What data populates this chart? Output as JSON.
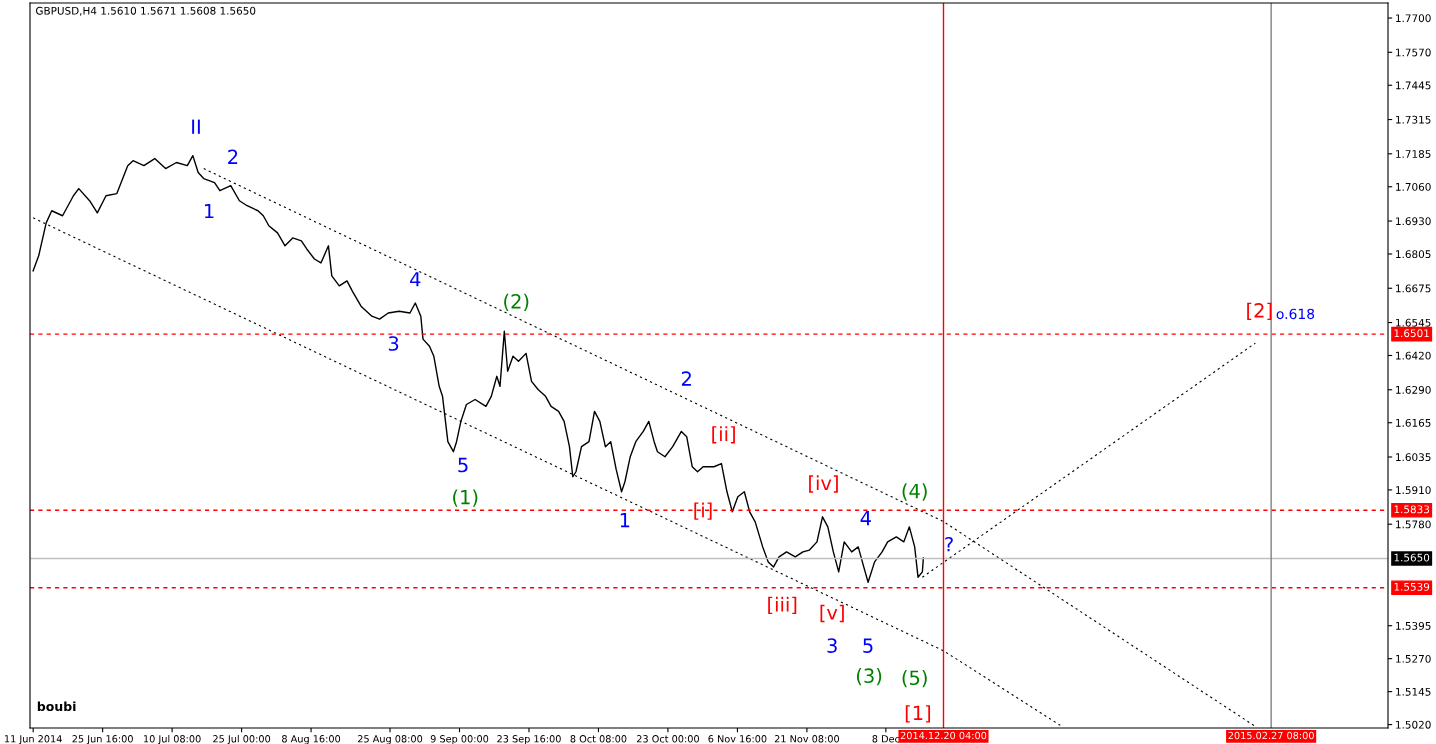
{
  "chart_data": {
    "type": "line",
    "title": "GBPUSD,H4 1.5610 1.5671 1.5608 1.5650",
    "xlim": [
      "2014-06-10T08:00",
      "2015-03-24T00:00"
    ],
    "ylim": [
      1.5007,
      1.7757
    ],
    "xticks": [
      {
        "value": "2014-06-11T00:00",
        "label": "11 Jun 2014"
      },
      {
        "value": "2014-06-25T16:00",
        "label": "25 Jun 16:00"
      },
      {
        "value": "2014-07-10T08:00",
        "label": "10 Jul 08:00"
      },
      {
        "value": "2014-07-25T00:00",
        "label": "25 Jul 00:00"
      },
      {
        "value": "2014-08-08T16:00",
        "label": "8 Aug 16:00"
      },
      {
        "value": "2014-08-25T08:00",
        "label": "25 Aug 08:00"
      },
      {
        "value": "2014-09-09T00:00",
        "label": "9 Sep 00:00"
      },
      {
        "value": "2014-09-23T16:00",
        "label": "23 Sep 16:00"
      },
      {
        "value": "2014-10-08T08:00",
        "label": "8 Oct 08:00"
      },
      {
        "value": "2014-10-23T00:00",
        "label": "23 Oct 00:00"
      },
      {
        "value": "2014-11-06T16:00",
        "label": "6 Nov 16:00"
      },
      {
        "value": "2014-11-21T08:00",
        "label": "21 Nov 08:00"
      },
      {
        "value": "2014-12-08T00:00",
        "label": "8 Dec"
      }
    ],
    "yticks": [
      {
        "value": 1.77,
        "label": "1.7700"
      },
      {
        "value": 1.757,
        "label": "1.7570"
      },
      1.7445,
      1.7315,
      1.7185,
      {
        "value": 1.706,
        "label": "1.7060"
      },
      {
        "value": 1.693,
        "label": "1.6930"
      },
      1.6805,
      1.6675,
      1.6545,
      {
        "value": 1.642,
        "label": "1.6420"
      },
      {
        "value": 1.629,
        "label": "1.6290"
      },
      1.6165,
      1.6035,
      {
        "value": 1.591,
        "label": "1.5910"
      },
      {
        "value": 1.578,
        "label": "1.5780"
      },
      1.5395,
      {
        "value": 1.527,
        "label": "1.5270"
      },
      1.5145,
      {
        "value": 1.502,
        "label": "1.5020"
      }
    ],
    "grid": false,
    "marker": "none",
    "series": [
      {
        "color": "#000000",
        "line_style": "solid",
        "x": [
          "2014-06-11T00:00",
          "2014-06-12T04:00",
          "2014-06-13T18:00",
          "2014-06-14T22:00",
          "2014-06-17T05:00",
          "2014-06-19T12:00",
          "2014-06-20T15:00",
          "2014-06-22T22:00",
          "2014-06-24T13:00",
          "2014-06-26T09:00",
          "2014-06-28T16:00",
          "2014-06-30T23:00",
          "2014-07-02T02:00",
          "2014-07-04T09:00",
          "2014-07-06T16:00",
          "2014-07-08T23:00",
          "2014-07-11T06:00",
          "2014-07-13T13:00",
          "2014-07-14T17:00",
          "2014-07-15T20:00",
          "2014-07-17T00:00",
          "2014-07-19T07:00",
          "2014-07-20T10:00",
          "2014-07-22T17:00",
          "2014-07-24T13:00",
          "2014-07-26T04:00",
          "2014-07-28T11:00",
          "2014-07-29T14:00",
          "2014-07-30T18:00",
          "2014-08-01T14:00",
          "2014-08-03T04:00",
          "2014-08-04T19:00",
          "2014-08-06T15:00",
          "2014-08-07T18:00",
          "2014-08-09T09:00",
          "2014-08-10T18:00",
          "2014-08-12T08:00",
          "2014-08-13T01:00",
          "2014-08-14T15:00",
          "2014-08-16T06:00",
          "2014-08-17T09:00",
          "2014-08-19T05:00",
          "2014-08-21T12:00",
          "2014-08-23T03:00",
          "2014-08-24T23:00",
          "2014-08-27T06:00",
          "2014-08-29T13:00",
          "2014-08-30T16:00",
          "2014-08-31T20:00",
          "2014-09-01T07:00",
          "2014-09-02T16:00",
          "2014-09-03T14:00",
          "2014-09-04T17:00",
          "2014-09-05T10:00",
          "2014-09-06T13:00",
          "2014-09-07T17:00",
          "2014-09-08T09:00",
          "2014-09-09T07:00",
          "2014-09-10T11:00",
          "2014-09-12T07:00",
          "2014-09-14T14:00",
          "2014-09-15T17:00",
          "2014-09-16T21:00",
          "2014-09-17T13:00",
          "2014-09-18T11:00",
          "2014-09-19T04:00",
          "2014-09-20T07:00",
          "2014-09-21T11:00",
          "2014-09-23T01:00",
          "2014-09-24T05:00",
          "2014-09-25T14:00",
          "2014-09-27T04:00",
          "2014-09-28T08:00",
          "2014-09-29T22:00",
          "2014-10-01T02:00",
          "2014-10-02T05:00",
          "2014-10-02T22:00",
          "2014-10-03T14:00",
          "2014-10-04T18:00",
          "2014-10-06T08:00",
          "2014-10-07T12:00",
          "2014-10-08T15:00",
          "2014-10-09T19:00",
          "2014-10-10T22:00",
          "2014-10-12T02:00",
          "2014-10-13T05:00",
          "2014-10-13T22:00",
          "2014-10-15T01:00",
          "2014-10-16T05:00",
          "2014-10-17T19:00",
          "2014-10-18T23:00",
          "2014-10-20T02:00",
          "2014-10-20T19:00",
          "2014-10-22T09:00",
          "2014-10-24T00:00",
          "2014-10-25T20:00",
          "2014-10-26T23:00",
          "2014-10-28T03:00",
          "2014-10-29T06:00",
          "2014-10-30T10:00",
          "2014-11-01T17:00",
          "2014-11-03T07:00",
          "2014-11-04T11:00",
          "2014-11-05T14:00",
          "2014-11-06T18:00",
          "2014-11-08T03:00",
          "2014-11-09T06:00",
          "2014-11-10T10:00",
          "2014-11-12T00:00",
          "2014-11-13T04:00",
          "2014-11-14T07:00",
          "2014-11-15T11:00",
          "2014-11-17T01:00",
          "2014-11-18T21:00",
          "2014-11-20T12:00",
          "2014-11-21T21:00",
          "2014-11-23T11:00",
          "2014-11-24T15:00",
          "2014-11-25T18:00",
          "2014-11-26T22:00",
          "2014-11-28T01:00",
          "2014-11-29T05:00",
          "2014-11-30T19:00",
          "2014-12-02T04:00",
          "2014-12-03T08:00",
          "2014-12-04T06:00",
          "2014-12-05T15:00",
          "2014-12-07T05:00",
          "2014-12-08T09:00",
          "2014-12-10T05:00",
          "2014-12-11T19:00",
          "2014-12-12T23:00",
          "2014-12-14T02:00",
          "2014-12-14T19:00",
          "2014-12-15T17:00",
          "2014-12-15T22:00"
        ],
        "values": [
          1.6741,
          1.6798,
          1.6923,
          1.6969,
          1.695,
          1.7026,
          1.7053,
          1.7007,
          1.6961,
          1.7026,
          1.7034,
          1.714,
          1.7159,
          1.714,
          1.7167,
          1.7129,
          1.7152,
          1.714,
          1.7178,
          1.7114,
          1.7091,
          1.7076,
          1.7045,
          1.7064,
          1.7007,
          1.6988,
          1.6969,
          1.695,
          1.6912,
          1.6885,
          1.6836,
          1.6866,
          1.6855,
          1.6824,
          1.6786,
          1.6771,
          1.6836,
          1.6722,
          1.6684,
          1.6703,
          1.6664,
          1.6607,
          1.6569,
          1.6558,
          1.6581,
          1.6588,
          1.6581,
          1.6619,
          1.6569,
          1.6482,
          1.6455,
          1.6417,
          1.6303,
          1.6265,
          1.6093,
          1.6055,
          1.6093,
          1.617,
          1.6234,
          1.6253,
          1.6227,
          1.6265,
          1.6341,
          1.6303,
          1.6512,
          1.636,
          1.6417,
          1.6398,
          1.6428,
          1.6322,
          1.6291,
          1.6265,
          1.6227,
          1.6208,
          1.617,
          1.6074,
          1.596,
          1.5979,
          1.6074,
          1.6093,
          1.6208,
          1.617,
          1.6074,
          1.6093,
          1.5987,
          1.5903,
          1.5941,
          1.6036,
          1.6093,
          1.6132,
          1.617,
          1.6093,
          1.6055,
          1.6036,
          1.6074,
          1.6132,
          1.6112,
          1.5998,
          1.5979,
          1.5998,
          1.5998,
          1.601,
          1.5903,
          1.5827,
          1.5884,
          1.5903,
          1.5827,
          1.5789,
          1.5694,
          1.5637,
          1.5618,
          1.5656,
          1.5675,
          1.5656,
          1.5675,
          1.5682,
          1.5713,
          1.5808,
          1.577,
          1.5675,
          1.5599,
          1.5713,
          1.5675,
          1.5694,
          1.5618,
          1.556,
          1.5637,
          1.5675,
          1.5713,
          1.5732,
          1.5713,
          1.577,
          1.5694,
          1.5579,
          1.5599,
          1.5652
        ]
      },
      {
        "type": "line",
        "color": "#000000",
        "line_style": "dotted",
        "x": [
          "2014-07-17T00:00",
          "2014-12-20T04:00",
          "2015-02-23T20:00"
        ],
        "values": [
          1.7129,
          1.579,
          1.5015
        ]
      },
      {
        "type": "line",
        "color": "#000000",
        "line_style": "dotted",
        "x": [
          "2014-06-11T00:00",
          "2014-12-20T04:00",
          "2015-01-14T00:00"
        ],
        "values": [
          1.6942,
          1.53,
          1.5015
        ]
      },
      {
        "type": "line",
        "color": "#000000",
        "line_style": "dotted",
        "x": [
          "2014-12-15T17:00",
          "2015-02-24T00:00"
        ],
        "values": [
          1.5579,
          1.6467
        ]
      }
    ],
    "ref_lines": [
      {
        "axis": "y",
        "value": 1.6501,
        "label": "1.6501",
        "color": "#ff0000",
        "line_style": "dashed"
      },
      {
        "axis": "y",
        "value": 1.5833,
        "label": "1.5833",
        "color": "#ff0000",
        "line_style": "dashed"
      },
      {
        "axis": "y",
        "value": 1.565,
        "label": "1.5650",
        "color": "#c0c0c0",
        "line_style": "solid"
      },
      {
        "axis": "y",
        "value": 1.5539,
        "label": "1.5539",
        "color": "#ff0000",
        "line_style": "dashed"
      },
      {
        "axis": "x",
        "value": "2014-12-20T04:00",
        "label": "2014.12.20 04:00",
        "color": "#ff0000",
        "line_style": "solid"
      },
      {
        "axis": "x",
        "value": "2015-02-27T08:00",
        "label": "2015.02.27 08:00",
        "color": "#808080",
        "line_style": "solid"
      }
    ],
    "annotations": [
      "II",
      "2",
      "1",
      "4",
      "3",
      "5",
      "(1)",
      "(2)",
      "2",
      "1",
      "[ii]",
      "[i]",
      "[iv]",
      "(4)",
      "4",
      "?",
      "[iii]",
      "[v]",
      "3",
      "5",
      "(3)",
      "(5)",
      "[1]",
      "[2]",
      "o.618",
      "boubi"
    ]
  }
}
